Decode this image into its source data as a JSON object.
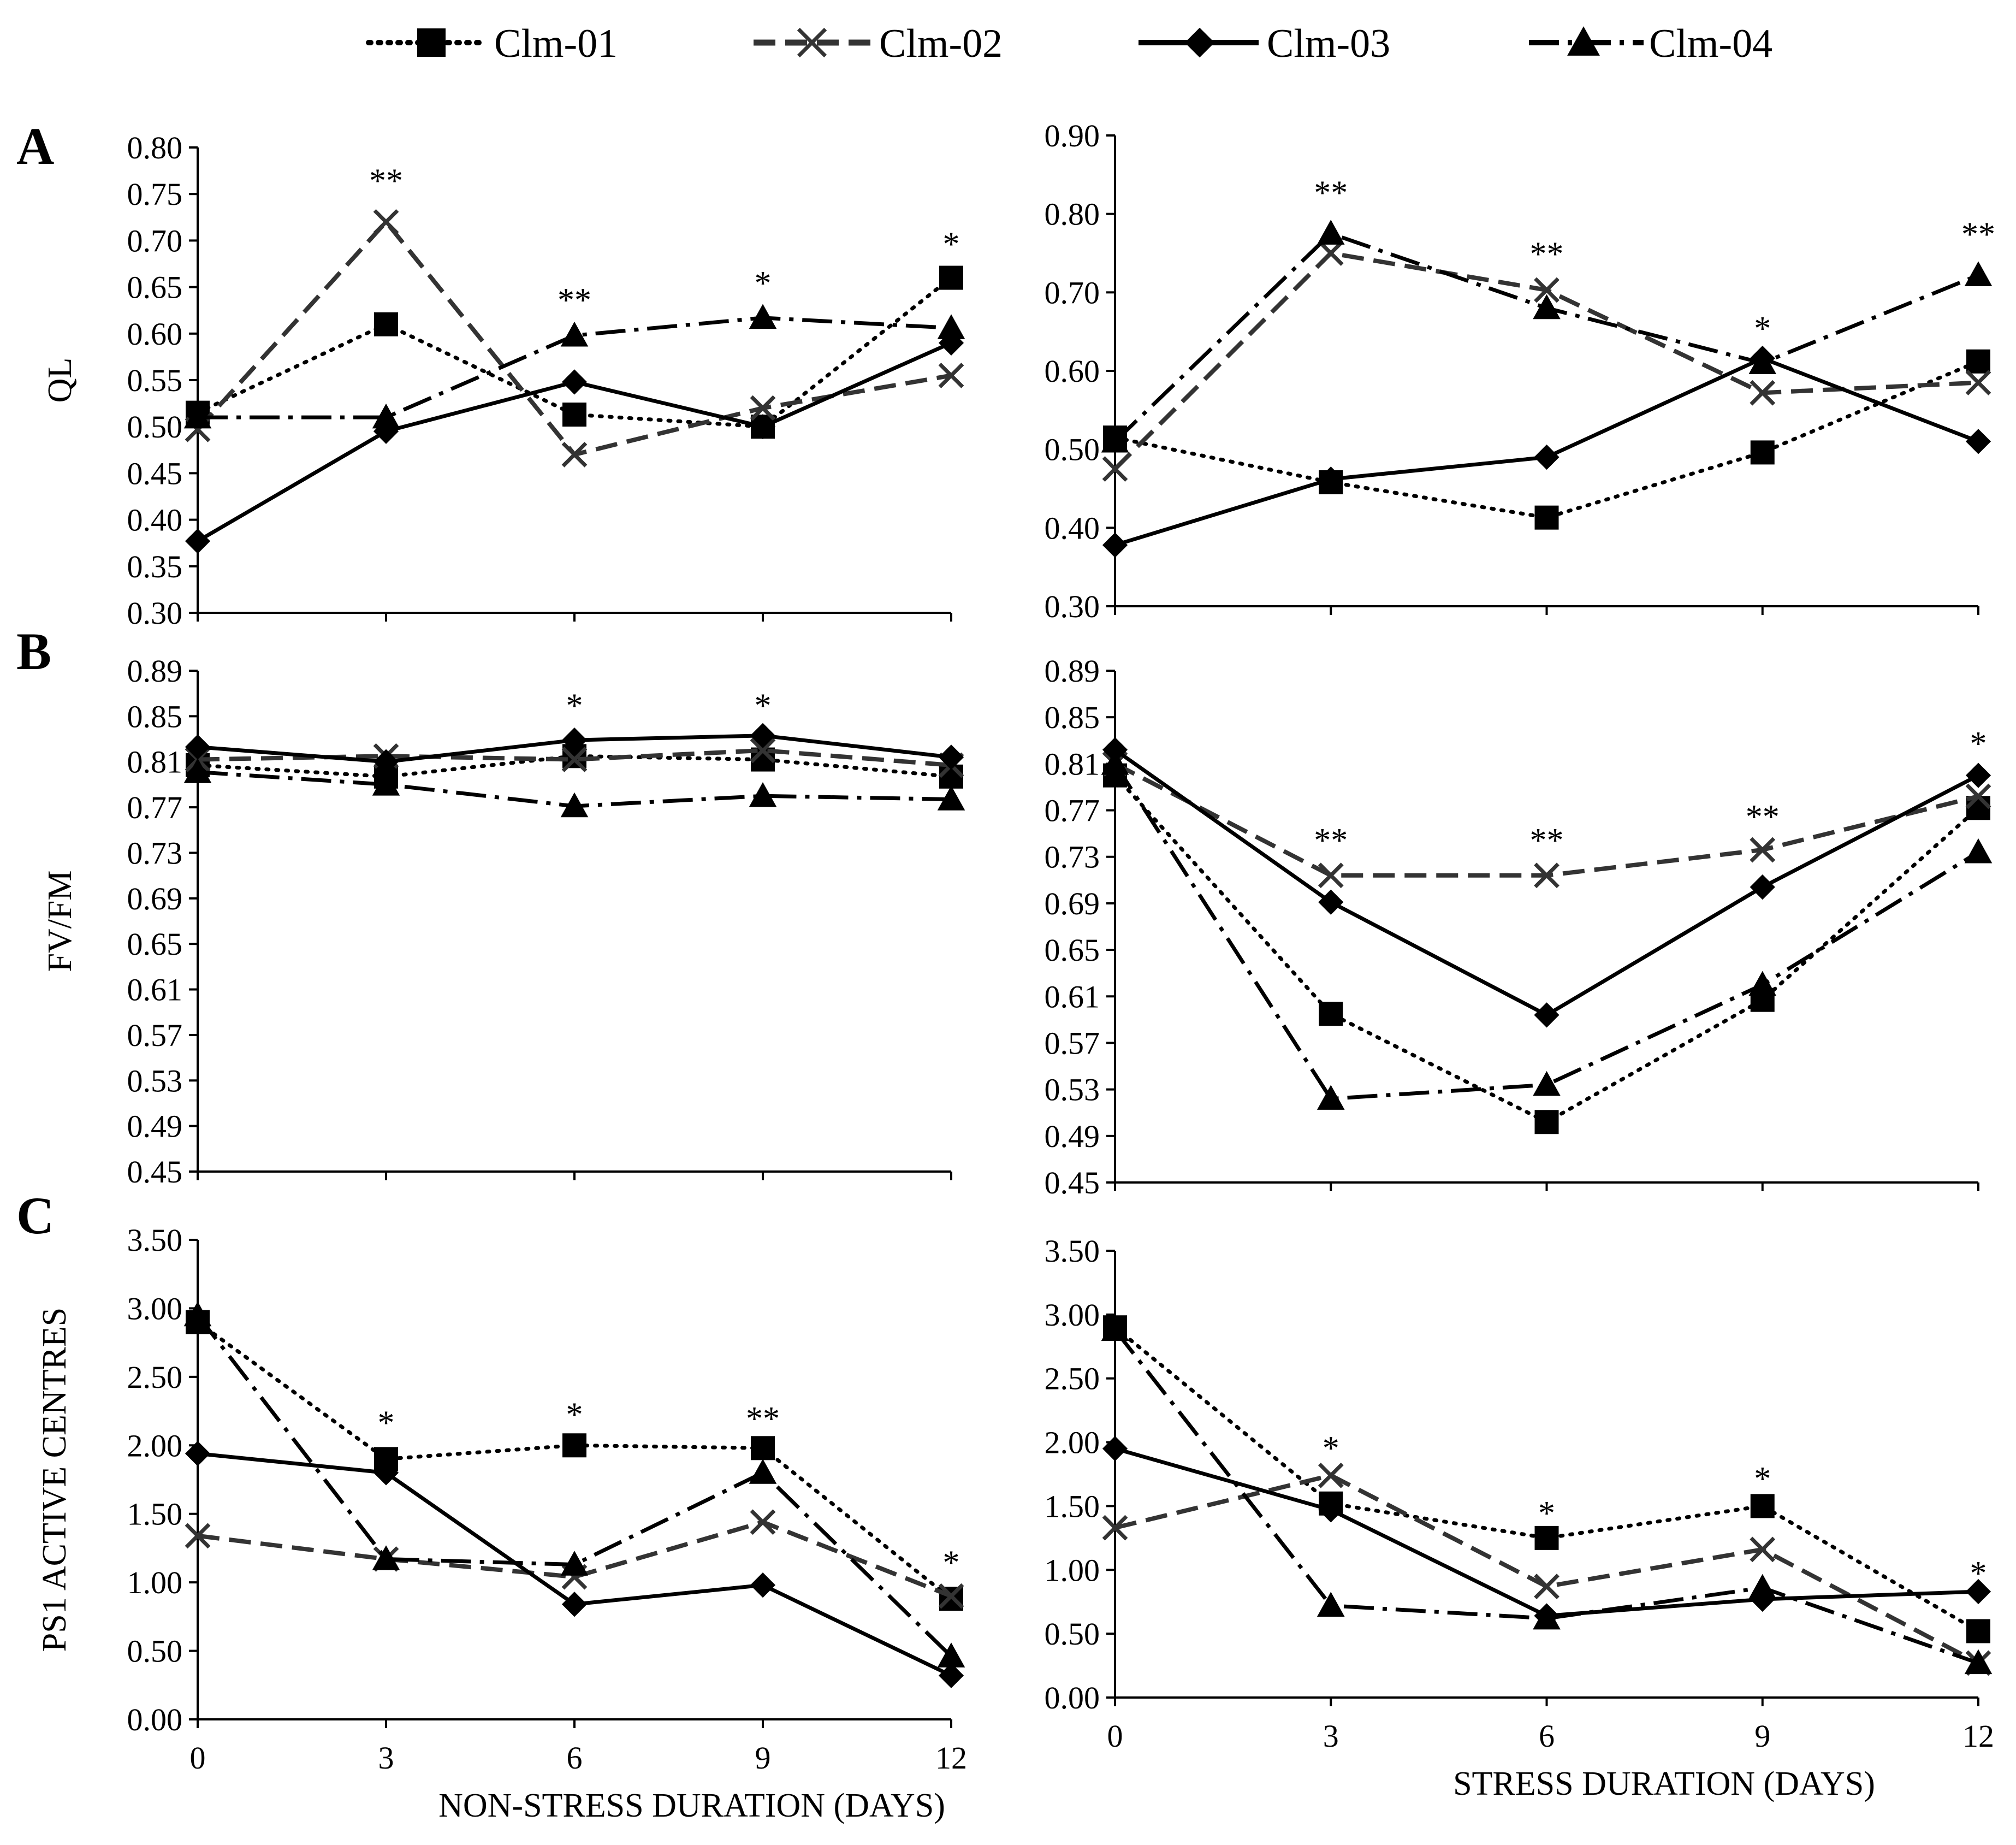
{
  "legend": {
    "entries": [
      {
        "label": "Clm-01",
        "series_key": "Clm-01"
      },
      {
        "label": "Clm-02",
        "series_key": "Clm-02"
      },
      {
        "label": "Clm-03",
        "series_key": "Clm-03"
      },
      {
        "label": "Clm-04",
        "series_key": "Clm-04"
      }
    ]
  },
  "series_styles": {
    "Clm-01": {
      "color": "#000000",
      "dash": "dotted",
      "marker": "square"
    },
    "Clm-02": {
      "color": "#333333",
      "dash": "dashed",
      "marker": "x"
    },
    "Clm-03": {
      "color": "#000000",
      "dash": "solid",
      "marker": "diamond"
    },
    "Clm-04": {
      "color": "#000000",
      "dash": "dashdot",
      "marker": "triangle"
    }
  },
  "chart_data": [
    {
      "type": "line",
      "panel_letter": "A",
      "title": "",
      "xlabel": "",
      "ylabel": "QL",
      "x": [
        0,
        3,
        6,
        9,
        12
      ],
      "x_tick_labels": [],
      "ylim": [
        0.3,
        0.8
      ],
      "y_ticks": [
        "0.30",
        "0.35",
        "0.40",
        "0.45",
        "0.50",
        "0.55",
        "0.60",
        "0.65",
        "0.70",
        "0.75",
        "0.80"
      ],
      "series": [
        {
          "name": "Clm-01",
          "values": [
            0.515,
            0.61,
            0.513,
            0.5,
            0.66
          ]
        },
        {
          "name": "Clm-02",
          "values": [
            0.497,
            0.72,
            0.47,
            0.52,
            0.555
          ]
        },
        {
          "name": "Clm-03",
          "values": [
            0.377,
            0.495,
            0.548,
            0.5,
            0.59
          ]
        },
        {
          "name": "Clm-04",
          "values": [
            0.51,
            0.51,
            0.598,
            0.617,
            0.606
          ]
        }
      ],
      "significance": [
        {
          "x": 3,
          "label": "**",
          "y": 0.765
        },
        {
          "x": 6,
          "label": "**",
          "y": 0.637
        },
        {
          "x": 9,
          "label": "*",
          "y": 0.655
        },
        {
          "x": 12,
          "label": "*",
          "y": 0.697
        }
      ],
      "grid": false
    },
    {
      "type": "line",
      "title": "",
      "xlabel": "",
      "ylabel": "",
      "x": [
        0,
        3,
        6,
        9,
        12
      ],
      "x_tick_labels": [],
      "ylim": [
        0.3,
        0.9
      ],
      "y_ticks": [
        "0.30",
        "0.40",
        "0.50",
        "0.60",
        "0.70",
        "0.80",
        "0.90"
      ],
      "series": [
        {
          "name": "Clm-01",
          "values": [
            0.515,
            0.458,
            0.413,
            0.496,
            0.612
          ]
        },
        {
          "name": "Clm-02",
          "values": [
            0.475,
            0.75,
            0.703,
            0.572,
            0.585
          ]
        },
        {
          "name": "Clm-03",
          "values": [
            0.378,
            0.462,
            0.49,
            0.616,
            0.51
          ]
        },
        {
          "name": "Clm-04",
          "values": [
            0.51,
            0.775,
            0.68,
            0.61,
            0.722
          ]
        }
      ],
      "significance": [
        {
          "x": 3,
          "label": "**",
          "y": 0.828
        },
        {
          "x": 6,
          "label": "**",
          "y": 0.75
        },
        {
          "x": 9,
          "label": "*",
          "y": 0.655
        },
        {
          "x": 12,
          "label": "**",
          "y": 0.775
        }
      ],
      "grid": false
    },
    {
      "type": "line",
      "panel_letter": "B",
      "title": "",
      "xlabel": "",
      "ylabel": "FV/FM",
      "x": [
        0,
        3,
        6,
        9,
        12
      ],
      "x_tick_labels": [],
      "ylim": [
        0.45,
        0.89
      ],
      "y_ticks": [
        "0.45",
        "0.49",
        "0.53",
        "0.57",
        "0.61",
        "0.65",
        "0.69",
        "0.73",
        "0.77",
        "0.81",
        "0.85",
        "0.89"
      ],
      "series": [
        {
          "name": "Clm-01",
          "values": [
            0.807,
            0.797,
            0.815,
            0.812,
            0.797
          ]
        },
        {
          "name": "Clm-02",
          "values": [
            0.812,
            0.815,
            0.812,
            0.82,
            0.807
          ]
        },
        {
          "name": "Clm-03",
          "values": [
            0.823,
            0.81,
            0.829,
            0.833,
            0.814
          ]
        },
        {
          "name": "Clm-04",
          "values": [
            0.801,
            0.79,
            0.771,
            0.78,
            0.777
          ]
        }
      ],
      "significance": [
        {
          "x": 6,
          "label": "*",
          "y": 0.86
        },
        {
          "x": 9,
          "label": "*",
          "y": 0.86
        }
      ],
      "grid": false
    },
    {
      "type": "line",
      "title": "",
      "xlabel": "",
      "ylabel": "",
      "x": [
        0,
        3,
        6,
        9,
        12
      ],
      "x_tick_labels": [],
      "ylim": [
        0.45,
        0.89
      ],
      "y_ticks": [
        "0.45",
        "0.49",
        "0.53",
        "0.57",
        "0.61",
        "0.65",
        "0.69",
        "0.73",
        "0.77",
        "0.81",
        "0.85",
        "0.89"
      ],
      "series": [
        {
          "name": "Clm-01",
          "values": [
            0.8,
            0.595,
            0.502,
            0.607,
            0.772
          ]
        },
        {
          "name": "Clm-02",
          "values": [
            0.81,
            0.714,
            0.714,
            0.736,
            0.782
          ]
        },
        {
          "name": "Clm-03",
          "values": [
            0.822,
            0.691,
            0.594,
            0.704,
            0.8
          ]
        },
        {
          "name": "Clm-04",
          "values": [
            0.81,
            0.522,
            0.534,
            0.62,
            0.734
          ]
        }
      ],
      "significance": [
        {
          "x": 3,
          "label": "**",
          "y": 0.745
        },
        {
          "x": 6,
          "label": "**",
          "y": 0.745
        },
        {
          "x": 9,
          "label": "**",
          "y": 0.765
        },
        {
          "x": 12,
          "label": "*",
          "y": 0.828
        }
      ],
      "grid": false
    },
    {
      "type": "line",
      "panel_letter": "C",
      "title": "",
      "xlabel": "NON-STRESS DURATION (DAYS)",
      "ylabel": "PS1 ACTIVE CENTRES",
      "x": [
        0,
        3,
        6,
        9,
        12
      ],
      "x_tick_labels": [
        "0",
        "3",
        "6",
        "9",
        "12"
      ],
      "ylim": [
        0,
        3.5
      ],
      "y_ticks": [
        "0.00",
        "0.50",
        "1.00",
        "1.50",
        "2.00",
        "2.50",
        "3.00",
        "3.50"
      ],
      "series": [
        {
          "name": "Clm-01",
          "values": [
            2.9,
            1.9,
            2.0,
            1.98,
            0.88
          ]
        },
        {
          "name": "Clm-02",
          "values": [
            1.34,
            1.17,
            1.04,
            1.44,
            0.9
          ]
        },
        {
          "name": "Clm-03",
          "values": [
            1.94,
            1.8,
            0.84,
            0.98,
            0.32
          ]
        },
        {
          "name": "Clm-04",
          "values": [
            2.95,
            1.17,
            1.13,
            1.8,
            0.46
          ]
        }
      ],
      "significance": [
        {
          "x": 3,
          "label": "*",
          "y": 2.17
        },
        {
          "x": 6,
          "label": "*",
          "y": 2.23
        },
        {
          "x": 9,
          "label": "**",
          "y": 2.2
        },
        {
          "x": 12,
          "label": "*",
          "y": 1.15
        }
      ],
      "grid": false
    },
    {
      "type": "line",
      "title": "",
      "xlabel": "STRESS DURATION (DAYS)",
      "ylabel": "",
      "x": [
        0,
        3,
        6,
        9,
        12
      ],
      "x_tick_labels": [
        "0",
        "3",
        "6",
        "9",
        "12"
      ],
      "ylim": [
        0,
        3.5
      ],
      "y_ticks": [
        "0.00",
        "0.50",
        "1.00",
        "1.50",
        "2.00",
        "2.50",
        "3.00",
        "3.50"
      ],
      "series": [
        {
          "name": "Clm-01",
          "values": [
            2.9,
            1.52,
            1.25,
            1.5,
            0.52
          ]
        },
        {
          "name": "Clm-02",
          "values": [
            1.33,
            1.74,
            0.87,
            1.16,
            0.27
          ]
        },
        {
          "name": "Clm-03",
          "values": [
            1.95,
            1.47,
            0.64,
            0.77,
            0.83
          ]
        },
        {
          "name": "Clm-04",
          "values": [
            2.88,
            0.72,
            0.62,
            0.86,
            0.27
          ]
        }
      ],
      "significance": [
        {
          "x": 3,
          "label": "*",
          "y": 1.96
        },
        {
          "x": 6,
          "label": "*",
          "y": 1.45
        },
        {
          "x": 9,
          "label": "*",
          "y": 1.72
        },
        {
          "x": 12,
          "label": "*",
          "y": 0.98
        }
      ],
      "grid": false
    }
  ]
}
